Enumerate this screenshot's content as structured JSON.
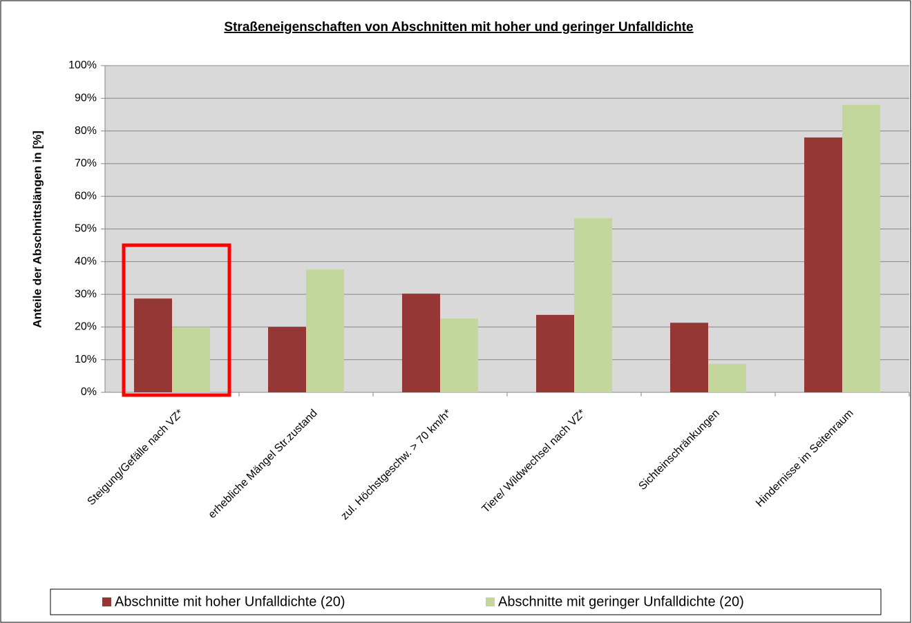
{
  "chart_data": {
    "type": "bar",
    "title": "Straßeneigenschaften von Abschnitten mit hoher und geringer Unfalldichte",
    "y_label": "Anteile der Abschnittslängen  in [%]",
    "categories": [
      "Steigung/Gefälle nach VZ*",
      "erhebliche Mängel Str.zustand",
      "zul. Höchstgeschw. > 70 km/h*",
      "Tiere/ Wildwechsel nach VZ*",
      "Sichteinschränkungen",
      "Hindernisse im Seitenraum"
    ],
    "series": [
      {
        "name": "Abschnitte mit hoher Unfalldichte (20)",
        "color": "#953735",
        "values": [
          28.7,
          20,
          30.2,
          23.7,
          21.3,
          78
        ]
      },
      {
        "name": "Abschnitte mit geringer Unfalldichte (20)",
        "color": "#c3d69b",
        "values": [
          20,
          37.6,
          22.6,
          53.3,
          8.7,
          88
        ]
      }
    ],
    "ylim": [
      0,
      100
    ],
    "yticks": [
      {
        "value": 0,
        "label": "0%"
      },
      {
        "value": 10,
        "label": "10%"
      },
      {
        "value": 20,
        "label": "20%"
      },
      {
        "value": 30,
        "label": "30%"
      },
      {
        "value": 40,
        "label": "40%"
      },
      {
        "value": 50,
        "label": "50%"
      },
      {
        "value": 60,
        "label": "60%"
      },
      {
        "value": 70,
        "label": "70%"
      },
      {
        "value": 80,
        "label": "80%"
      },
      {
        "value": 90,
        "label": "90%"
      },
      {
        "value": 100,
        "label": "100%"
      }
    ],
    "grid": true,
    "legend": "bottom"
  }
}
